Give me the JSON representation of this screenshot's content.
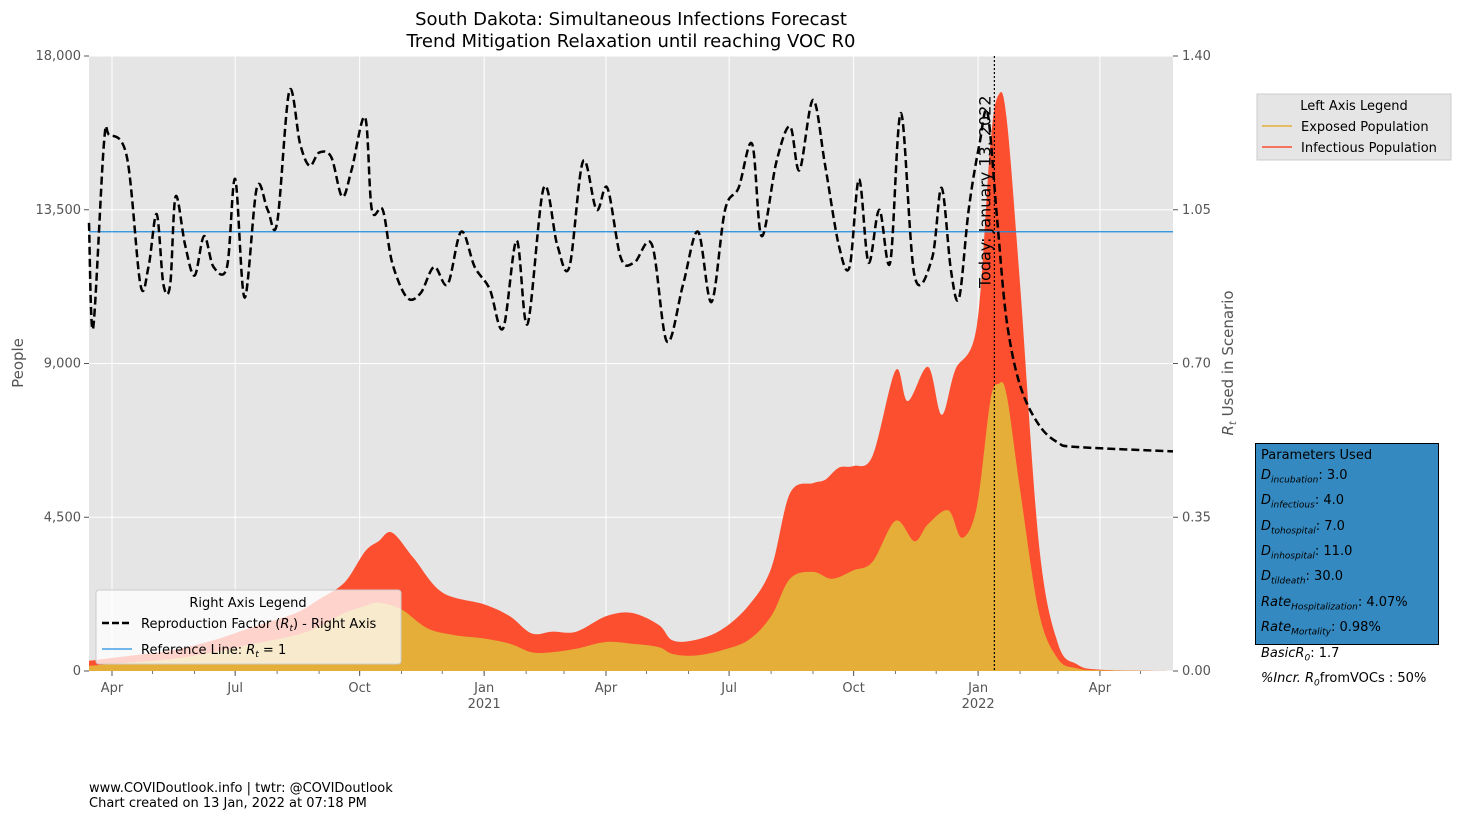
{
  "chart_data": {
    "type": "area",
    "title": "South Dakota: Simultaneous Infections Forecast",
    "subtitle": "Trend Mitigation Relaxation until reaching VOC R0",
    "ylabel_left": "People",
    "ylabel_right": "R_t Used in Scenario",
    "ylim_left": [
      0,
      18000
    ],
    "ylim_right": [
      0,
      1.4
    ],
    "left_ticks": [
      "0",
      "4,500",
      "9,000",
      "13,500",
      "18,000"
    ],
    "left_tick_values": [
      0,
      4500,
      9000,
      13500,
      18000
    ],
    "right_ticks": [
      "0.00",
      "0.35",
      "0.70",
      "1.05",
      "1.40"
    ],
    "right_tick_values": [
      0,
      0.35,
      0.7,
      1.05,
      1.4
    ],
    "xlim": [
      "2020-03-15",
      "2022-05-25"
    ],
    "x_ticks": [
      {
        "date": "2020-04-01",
        "label": "Apr",
        "year": ""
      },
      {
        "date": "2020-07-01",
        "label": "Jul",
        "year": ""
      },
      {
        "date": "2020-10-01",
        "label": "Oct",
        "year": ""
      },
      {
        "date": "2021-01-01",
        "label": "Jan",
        "year": "2021"
      },
      {
        "date": "2021-04-01",
        "label": "Apr",
        "year": ""
      },
      {
        "date": "2021-07-01",
        "label": "Jul",
        "year": ""
      },
      {
        "date": "2021-10-01",
        "label": "Oct",
        "year": ""
      },
      {
        "date": "2022-01-01",
        "label": "Jan",
        "year": "2022"
      },
      {
        "date": "2022-04-01",
        "label": "Apr",
        "year": ""
      }
    ],
    "today": {
      "date": "2022-01-13",
      "label": "Today: January 13, 2022"
    },
    "grid": true,
    "colors": {
      "exposed": "#e4ae38",
      "infectious": "#fc4f30",
      "reference": "#1f8ee0",
      "rt": "#000000",
      "plot_bg": "#e5e5e5"
    },
    "series": [
      {
        "name": "Exposed Population",
        "points": [
          [
            "2020-03-15",
            150
          ],
          [
            "2020-04-15",
            250
          ],
          [
            "2020-05-15",
            350
          ],
          [
            "2020-06-15",
            550
          ],
          [
            "2020-07-15",
            800
          ],
          [
            "2020-08-15",
            1050
          ],
          [
            "2020-09-01",
            1300
          ],
          [
            "2020-09-20",
            1700
          ],
          [
            "2020-10-05",
            1900
          ],
          [
            "2020-10-15",
            2000
          ],
          [
            "2020-11-01",
            1800
          ],
          [
            "2020-11-20",
            1250
          ],
          [
            "2020-12-10",
            1050
          ],
          [
            "2021-01-01",
            950
          ],
          [
            "2021-01-20",
            800
          ],
          [
            "2021-02-05",
            550
          ],
          [
            "2021-02-20",
            550
          ],
          [
            "2021-03-10",
            650
          ],
          [
            "2021-04-01",
            850
          ],
          [
            "2021-04-20",
            800
          ],
          [
            "2021-05-10",
            700
          ],
          [
            "2021-05-20",
            500
          ],
          [
            "2021-06-05",
            450
          ],
          [
            "2021-06-25",
            600
          ],
          [
            "2021-07-15",
            900
          ],
          [
            "2021-08-01",
            1600
          ],
          [
            "2021-08-15",
            2700
          ],
          [
            "2021-09-01",
            2900
          ],
          [
            "2021-09-15",
            2700
          ],
          [
            "2021-10-01",
            2950
          ],
          [
            "2021-10-15",
            3200
          ],
          [
            "2021-11-01",
            4400
          ],
          [
            "2021-11-15",
            3800
          ],
          [
            "2021-11-25",
            4300
          ],
          [
            "2021-12-10",
            4700
          ],
          [
            "2021-12-20",
            3900
          ],
          [
            "2021-12-31",
            4800
          ],
          [
            "2022-01-10",
            7900
          ],
          [
            "2022-01-16",
            8400
          ],
          [
            "2022-01-22",
            8100
          ],
          [
            "2022-02-01",
            5300
          ],
          [
            "2022-02-15",
            1700
          ],
          [
            "2022-03-01",
            350
          ],
          [
            "2022-03-15",
            80
          ],
          [
            "2022-04-01",
            20
          ],
          [
            "2022-05-25",
            0
          ]
        ]
      },
      {
        "name": "Infectious Population",
        "points": [
          [
            "2020-03-15",
            300
          ],
          [
            "2020-04-15",
            450
          ],
          [
            "2020-05-15",
            600
          ],
          [
            "2020-06-15",
            900
          ],
          [
            "2020-07-15",
            1300
          ],
          [
            "2020-08-15",
            1700
          ],
          [
            "2020-09-01",
            2100
          ],
          [
            "2020-09-20",
            2600
          ],
          [
            "2020-10-05",
            3500
          ],
          [
            "2020-10-15",
            3800
          ],
          [
            "2020-10-25",
            4050
          ],
          [
            "2020-11-10",
            3300
          ],
          [
            "2020-12-01",
            2300
          ],
          [
            "2021-01-01",
            1950
          ],
          [
            "2021-01-20",
            1600
          ],
          [
            "2021-02-05",
            1100
          ],
          [
            "2021-02-20",
            1150
          ],
          [
            "2021-03-10",
            1150
          ],
          [
            "2021-04-01",
            1600
          ],
          [
            "2021-04-20",
            1700
          ],
          [
            "2021-05-10",
            1350
          ],
          [
            "2021-05-20",
            900
          ],
          [
            "2021-06-05",
            900
          ],
          [
            "2021-06-25",
            1200
          ],
          [
            "2021-07-15",
            1900
          ],
          [
            "2021-08-01",
            3000
          ],
          [
            "2021-08-15",
            5200
          ],
          [
            "2021-09-01",
            5500
          ],
          [
            "2021-09-10",
            5600
          ],
          [
            "2021-09-20",
            5950
          ],
          [
            "2021-10-01",
            6000
          ],
          [
            "2021-10-15",
            6300
          ],
          [
            "2021-11-01",
            8800
          ],
          [
            "2021-11-10",
            7900
          ],
          [
            "2021-11-25",
            8900
          ],
          [
            "2021-12-05",
            7500
          ],
          [
            "2021-12-15",
            8800
          ],
          [
            "2021-12-31",
            10100
          ],
          [
            "2022-01-10",
            15400
          ],
          [
            "2022-01-16",
            16850
          ],
          [
            "2022-01-22",
            16200
          ],
          [
            "2022-02-01",
            11300
          ],
          [
            "2022-02-15",
            3700
          ],
          [
            "2022-03-01",
            800
          ],
          [
            "2022-03-15",
            200
          ],
          [
            "2022-04-01",
            40
          ],
          [
            "2022-05-25",
            0
          ]
        ]
      },
      {
        "name": "Reproduction Factor (R_t) - Right Axis",
        "axis": "right",
        "points": [
          [
            "2020-03-15",
            1.02
          ],
          [
            "2020-03-18",
            0.78
          ],
          [
            "2020-03-26",
            1.2
          ],
          [
            "2020-03-30",
            1.22
          ],
          [
            "2020-04-12",
            1.17
          ],
          [
            "2020-04-22",
            0.88
          ],
          [
            "2020-04-28",
            0.92
          ],
          [
            "2020-05-04",
            1.04
          ],
          [
            "2020-05-09",
            0.88
          ],
          [
            "2020-05-14",
            0.88
          ],
          [
            "2020-05-18",
            1.08
          ],
          [
            "2020-05-25",
            0.97
          ],
          [
            "2020-06-01",
            0.9
          ],
          [
            "2020-06-08",
            0.99
          ],
          [
            "2020-06-15",
            0.92
          ],
          [
            "2020-06-25",
            0.92
          ],
          [
            "2020-07-01",
            1.12
          ],
          [
            "2020-07-08",
            0.85
          ],
          [
            "2020-07-17",
            1.1
          ],
          [
            "2020-07-25",
            1.05
          ],
          [
            "2020-08-01",
            1.02
          ],
          [
            "2020-08-10",
            1.32
          ],
          [
            "2020-08-18",
            1.2
          ],
          [
            "2020-08-25",
            1.15
          ],
          [
            "2020-09-01",
            1.18
          ],
          [
            "2020-09-10",
            1.17
          ],
          [
            "2020-09-18",
            1.08
          ],
          [
            "2020-09-25",
            1.14
          ],
          [
            "2020-10-05",
            1.26
          ],
          [
            "2020-10-10",
            1.05
          ],
          [
            "2020-10-18",
            1.05
          ],
          [
            "2020-10-25",
            0.93
          ],
          [
            "2020-11-05",
            0.85
          ],
          [
            "2020-11-15",
            0.86
          ],
          [
            "2020-11-25",
            0.92
          ],
          [
            "2020-12-05",
            0.88
          ],
          [
            "2020-12-15",
            1.0
          ],
          [
            "2020-12-25",
            0.92
          ],
          [
            "2021-01-05",
            0.87
          ],
          [
            "2021-01-15",
            0.78
          ],
          [
            "2021-01-25",
            0.98
          ],
          [
            "2021-02-02",
            0.79
          ],
          [
            "2021-02-14",
            1.1
          ],
          [
            "2021-02-24",
            0.97
          ],
          [
            "2021-03-05",
            0.92
          ],
          [
            "2021-03-15",
            1.16
          ],
          [
            "2021-03-25",
            1.05
          ],
          [
            "2021-04-02",
            1.1
          ],
          [
            "2021-04-12",
            0.94
          ],
          [
            "2021-04-22",
            0.93
          ],
          [
            "2021-05-05",
            0.97
          ],
          [
            "2021-05-16",
            0.75
          ],
          [
            "2021-05-28",
            0.88
          ],
          [
            "2021-06-08",
            1.0
          ],
          [
            "2021-06-18",
            0.84
          ],
          [
            "2021-06-28",
            1.05
          ],
          [
            "2021-07-08",
            1.1
          ],
          [
            "2021-07-18",
            1.2
          ],
          [
            "2021-07-25",
            0.99
          ],
          [
            "2021-08-05",
            1.16
          ],
          [
            "2021-08-15",
            1.24
          ],
          [
            "2021-08-22",
            1.14
          ],
          [
            "2021-09-01",
            1.3
          ],
          [
            "2021-09-10",
            1.15
          ],
          [
            "2021-09-20",
            0.97
          ],
          [
            "2021-09-28",
            0.92
          ],
          [
            "2021-10-05",
            1.12
          ],
          [
            "2021-10-12",
            0.93
          ],
          [
            "2021-10-20",
            1.05
          ],
          [
            "2021-10-28",
            0.93
          ],
          [
            "2021-11-05",
            1.27
          ],
          [
            "2021-11-15",
            0.9
          ],
          [
            "2021-11-28",
            0.94
          ],
          [
            "2021-12-05",
            1.1
          ],
          [
            "2021-12-12",
            0.91
          ],
          [
            "2021-12-18",
            0.85
          ],
          [
            "2021-12-25",
            1.05
          ],
          [
            "2022-01-02",
            1.2
          ],
          [
            "2022-01-08",
            1.27
          ],
          [
            "2022-01-15",
            1.03
          ],
          [
            "2022-01-22",
            0.8
          ],
          [
            "2022-02-01",
            0.65
          ],
          [
            "2022-02-15",
            0.56
          ],
          [
            "2022-03-01",
            0.52
          ],
          [
            "2022-03-15",
            0.51
          ],
          [
            "2022-05-25",
            0.5
          ]
        ]
      },
      {
        "name": "Reference Line: R_t = 1",
        "axis": "right",
        "points": [
          [
            "2020-03-15",
            1.0
          ],
          [
            "2022-05-25",
            1.0
          ]
        ]
      }
    ],
    "left_legend": {
      "title": "Left Axis Legend",
      "entries": [
        "Exposed Population",
        "Infectious Population"
      ]
    },
    "right_legend": {
      "title": "Right Axis Legend",
      "entries": [
        "Reproduction Factor (R_t) - Right Axis",
        "Reference Line: R_t = 1"
      ]
    }
  },
  "params": {
    "title": "Parameters Used",
    "items": [
      {
        "sym": "D",
        "sub": "incubation",
        "value": ": 3.0"
      },
      {
        "sym": "D",
        "sub": "infectious",
        "value": ": 4.0"
      },
      {
        "sym": "D",
        "sub": "tohospital",
        "value": ": 7.0"
      },
      {
        "sym": "D",
        "sub": "inhospital",
        "value": ": 11.0"
      },
      {
        "sym": "D",
        "sub": "tildeath",
        "value": ": 30.0"
      },
      {
        "sym": "Rate",
        "sub": "Hospitalization",
        "value": ": 4.07%"
      },
      {
        "sym": "Rate",
        "sub": "Mortality",
        "value": ": 0.98%"
      },
      {
        "sym": "BasicR",
        "sub": "0",
        "value": ": 1.7"
      },
      {
        "sym": "%Incr. R",
        "sub": "0",
        "value": "fromVOCs : 50%"
      }
    ]
  },
  "footer": {
    "line1": "www.COVIDoutlook.info | twtr: @COVIDoutlook",
    "line2": "Chart created on 13 Jan, 2022 at 07:18 PM"
  }
}
